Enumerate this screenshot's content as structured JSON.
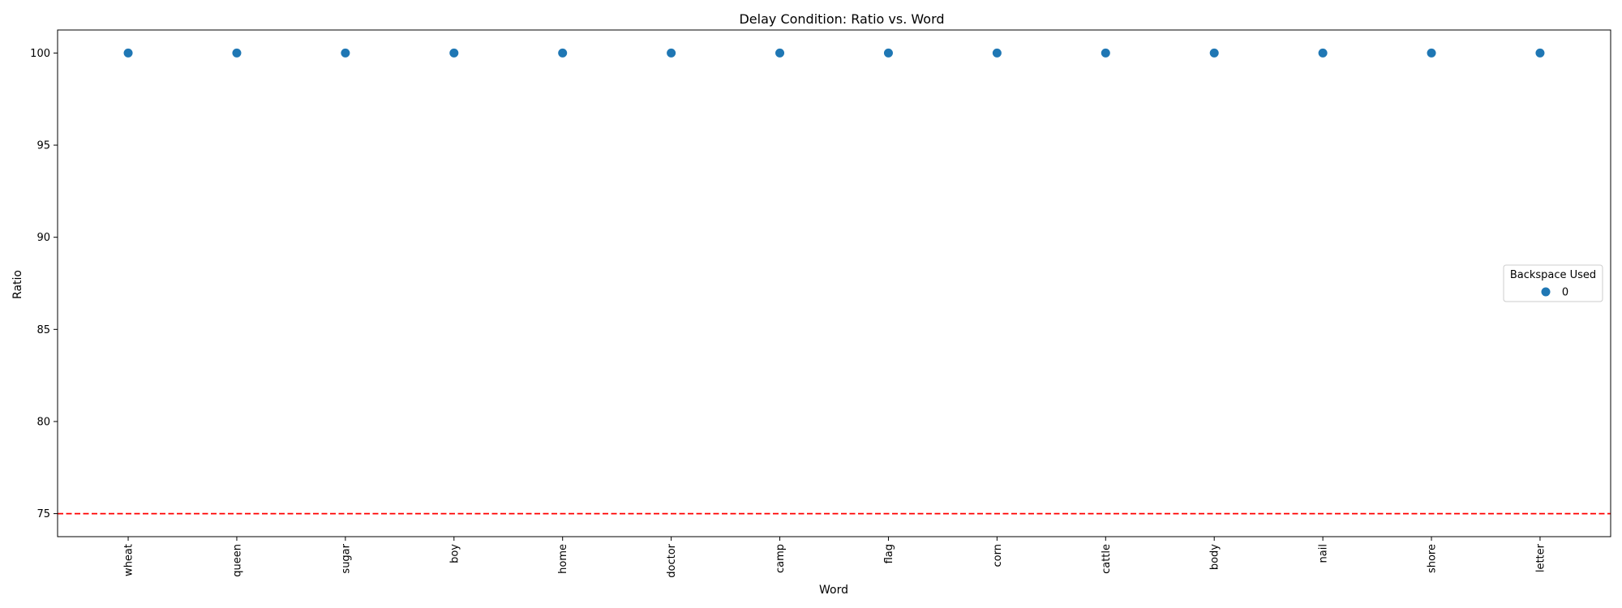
{
  "chart_data": {
    "type": "scatter",
    "title": "Delay Condition: Ratio vs. Word",
    "xlabel": "Word",
    "ylabel": "Ratio",
    "categories": [
      "wheat",
      "queen",
      "sugar",
      "boy",
      "home",
      "doctor",
      "camp",
      "flag",
      "corn",
      "cattle",
      "body",
      "nail",
      "shore",
      "letter"
    ],
    "series": [
      {
        "name": "0",
        "values": [
          100,
          100,
          100,
          100,
          100,
          100,
          100,
          100,
          100,
          100,
          100,
          100,
          100,
          100
        ],
        "color": "#1f77b4"
      }
    ],
    "ylim": [
      73.75,
      101.25
    ],
    "yticks": [
      75,
      80,
      85,
      90,
      95,
      100
    ],
    "reference_line": {
      "y": 75,
      "color": "#ff0000",
      "style": "dashed"
    },
    "legend": {
      "title": "Backspace Used",
      "placement": "center-right"
    },
    "grid": false
  }
}
